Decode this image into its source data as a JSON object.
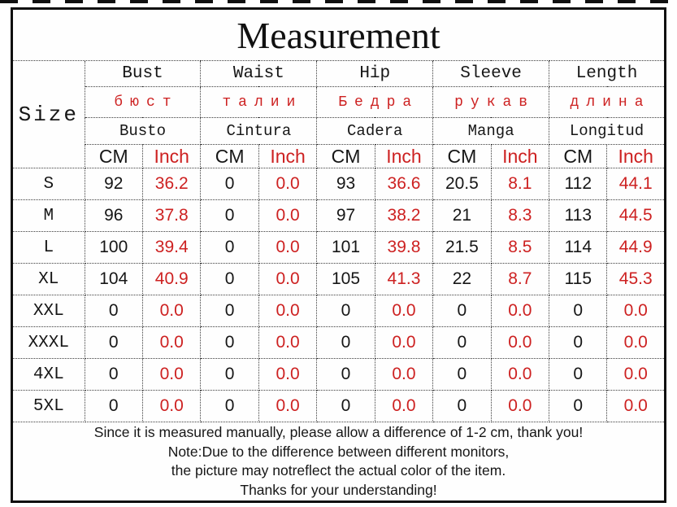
{
  "title": "Measurement",
  "table": {
    "size_header": "Size",
    "unit_cm": "CM",
    "unit_inch": "Inch",
    "columns": [
      {
        "en": "Bust",
        "ru": "бюст",
        "es": "Busto"
      },
      {
        "en": "Waist",
        "ru": "талии",
        "es": "Cintura"
      },
      {
        "en": "Hip",
        "ru": "Бедра",
        "es": "Cadera"
      },
      {
        "en": "Sleeve",
        "ru": "рукав",
        "es": "Manga"
      },
      {
        "en": "Length",
        "ru": "длина",
        "es": "Longitud"
      }
    ],
    "rows": [
      {
        "size": "S",
        "values": [
          "92",
          "36.2",
          "0",
          "0.0",
          "93",
          "36.6",
          "20.5",
          "8.1",
          "112",
          "44.1"
        ]
      },
      {
        "size": "M",
        "values": [
          "96",
          "37.8",
          "0",
          "0.0",
          "97",
          "38.2",
          "21",
          "8.3",
          "113",
          "44.5"
        ]
      },
      {
        "size": "L",
        "values": [
          "100",
          "39.4",
          "0",
          "0.0",
          "101",
          "39.8",
          "21.5",
          "8.5",
          "114",
          "44.9"
        ]
      },
      {
        "size": "XL",
        "values": [
          "104",
          "40.9",
          "0",
          "0.0",
          "105",
          "41.3",
          "22",
          "8.7",
          "115",
          "45.3"
        ]
      },
      {
        "size": "XXL",
        "values": [
          "0",
          "0.0",
          "0",
          "0.0",
          "0",
          "0.0",
          "0",
          "0.0",
          "0",
          "0.0"
        ]
      },
      {
        "size": "XXXL",
        "values": [
          "0",
          "0.0",
          "0",
          "0.0",
          "0",
          "0.0",
          "0",
          "0.0",
          "0",
          "0.0"
        ]
      },
      {
        "size": "4XL",
        "values": [
          "0",
          "0.0",
          "0",
          "0.0",
          "0",
          "0.0",
          "0",
          "0.0",
          "0",
          "0.0"
        ]
      },
      {
        "size": "5XL",
        "values": [
          "0",
          "0.0",
          "0",
          "0.0",
          "0",
          "0.0",
          "0",
          "0.0",
          "0",
          "0.0"
        ]
      }
    ]
  },
  "notes": [
    "Since it is measured manually, please allow a difference of 1-2 cm, thank you!",
    "Note:Due to the difference between different monitors,",
    "the picture may notreflect the actual color of the item.",
    "Thanks for your understanding!"
  ],
  "colors": {
    "accent_red": "#cd2121",
    "text_black": "#161616",
    "border_black": "#101010",
    "background": "#ffffff"
  },
  "chart_data": {
    "type": "table",
    "title": "Measurement",
    "columns": [
      "Size",
      "Bust CM",
      "Bust Inch",
      "Waist CM",
      "Waist Inch",
      "Hip CM",
      "Hip Inch",
      "Sleeve CM",
      "Sleeve Inch",
      "Length CM",
      "Length Inch"
    ],
    "rows": [
      [
        "S",
        92,
        36.2,
        0,
        0.0,
        93,
        36.6,
        20.5,
        8.1,
        112,
        44.1
      ],
      [
        "M",
        96,
        37.8,
        0,
        0.0,
        97,
        38.2,
        21,
        8.3,
        113,
        44.5
      ],
      [
        "L",
        100,
        39.4,
        0,
        0.0,
        101,
        39.8,
        21.5,
        8.5,
        114,
        44.9
      ],
      [
        "XL",
        104,
        40.9,
        0,
        0.0,
        105,
        41.3,
        22,
        8.7,
        115,
        45.3
      ],
      [
        "XXL",
        0,
        0.0,
        0,
        0.0,
        0,
        0.0,
        0,
        0.0,
        0,
        0.0
      ],
      [
        "XXXL",
        0,
        0.0,
        0,
        0.0,
        0,
        0.0,
        0,
        0.0,
        0,
        0.0
      ],
      [
        "4XL",
        0,
        0.0,
        0,
        0.0,
        0,
        0.0,
        0,
        0.0,
        0,
        0.0
      ],
      [
        "5XL",
        0,
        0.0,
        0,
        0.0,
        0,
        0.0,
        0,
        0.0,
        0,
        0.0
      ]
    ],
    "header_translations": {
      "russian": [
        "бюст",
        "талии",
        "Бедра",
        "рукав",
        "длина"
      ],
      "spanish": [
        "Busto",
        "Cintura",
        "Cadera",
        "Manga",
        "Longitud"
      ]
    },
    "notes": [
      "Since it is measured manually, please allow a difference of 1-2 cm, thank you!",
      "Note:Due to the difference between different monitors,",
      "the picture may notreflect the actual color of the item.",
      "Thanks for your understanding!"
    ]
  }
}
